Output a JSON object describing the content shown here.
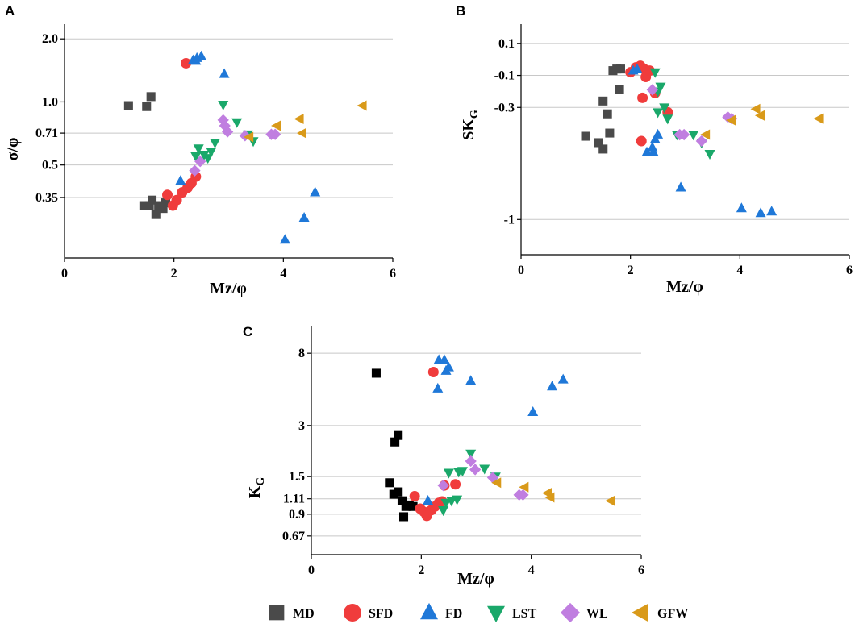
{
  "colors": {
    "MD": "#4a4a4a",
    "SFD": "#f03c3c",
    "FD": "#1f78d8",
    "LST": "#1aa86a",
    "WL": "#c07ee0",
    "GFW": "#d99a1a",
    "MD_panelC": "#000000",
    "grid": "#c8c8c8"
  },
  "legend": [
    {
      "key": "MD",
      "label": "MD",
      "marker": "square-icon"
    },
    {
      "key": "SFD",
      "label": "SFD",
      "marker": "circle-icon"
    },
    {
      "key": "FD",
      "label": "FD",
      "marker": "triangle-up-icon"
    },
    {
      "key": "LST",
      "label": "LST",
      "marker": "triangle-down-icon"
    },
    {
      "key": "WL",
      "label": "WL",
      "marker": "diamond-icon"
    },
    {
      "key": "GFW",
      "label": "GFW",
      "marker": "triangle-left-icon"
    }
  ],
  "chart_data": [
    {
      "panel": "A",
      "type": "scatter",
      "xlabel": "Mz/φ",
      "ylabel": "σ/φ",
      "xlim": [
        0,
        6
      ],
      "xticks": [
        0,
        2,
        4,
        6
      ],
      "ylim": [
        0.18,
        2.35
      ],
      "yscale": "log",
      "yticks": [
        0.35,
        0.5,
        0.71,
        1.0,
        2.0
      ],
      "ytick_labels": [
        "0.35",
        "0.5",
        "0.71",
        "1.0",
        "2.0"
      ],
      "grid": true,
      "series": [
        {
          "name": "MD",
          "marker": "square",
          "points": [
            [
              1.17,
              0.96
            ],
            [
              1.5,
              0.95
            ],
            [
              1.58,
              1.06
            ],
            [
              1.45,
              0.32
            ],
            [
              1.55,
              0.32
            ],
            [
              1.6,
              0.34
            ],
            [
              1.67,
              0.29
            ],
            [
              1.72,
              0.32
            ],
            [
              1.8,
              0.31
            ],
            [
              1.85,
              0.33
            ]
          ]
        },
        {
          "name": "SFD",
          "marker": "circle",
          "points": [
            [
              2.22,
              1.53
            ],
            [
              1.88,
              0.36
            ],
            [
              1.98,
              0.32
            ],
            [
              2.05,
              0.34
            ],
            [
              2.15,
              0.37
            ],
            [
              2.25,
              0.39
            ],
            [
              2.32,
              0.41
            ],
            [
              2.4,
              0.44
            ]
          ]
        },
        {
          "name": "FD",
          "marker": "triangle-up",
          "points": [
            [
              2.35,
              1.58
            ],
            [
              2.42,
              1.62
            ],
            [
              2.5,
              1.65
            ],
            [
              2.4,
              1.57
            ],
            [
              2.92,
              1.36
            ],
            [
              2.12,
              0.42
            ],
            [
              4.03,
              0.22
            ],
            [
              4.38,
              0.28
            ],
            [
              4.58,
              0.37
            ]
          ]
        },
        {
          "name": "LST",
          "marker": "triangle-down",
          "points": [
            [
              2.4,
              0.55
            ],
            [
              2.45,
              0.6
            ],
            [
              2.55,
              0.56
            ],
            [
              2.62,
              0.54
            ],
            [
              2.68,
              0.58
            ],
            [
              2.75,
              0.64
            ],
            [
              2.9,
              0.97
            ],
            [
              3.15,
              0.8
            ],
            [
              3.35,
              0.7
            ],
            [
              3.45,
              0.65
            ]
          ]
        },
        {
          "name": "WL",
          "marker": "diamond",
          "points": [
            [
              2.38,
              0.47
            ],
            [
              2.48,
              0.52
            ],
            [
              2.9,
              0.82
            ],
            [
              2.93,
              0.77
            ],
            [
              2.98,
              0.72
            ],
            [
              3.3,
              0.69
            ],
            [
              3.78,
              0.7
            ],
            [
              3.85,
              0.7
            ]
          ]
        },
        {
          "name": "GFW",
          "marker": "triangle-left",
          "points": [
            [
              3.38,
              0.68
            ],
            [
              3.88,
              0.77
            ],
            [
              4.3,
              0.83
            ],
            [
              4.35,
              0.71
            ],
            [
              5.45,
              0.96
            ]
          ]
        }
      ]
    },
    {
      "panel": "B",
      "type": "scatter",
      "xlabel": "Mz/φ",
      "ylabel": "SKG",
      "ylabel_main": "SK",
      "ylabel_sub": "G",
      "xlim": [
        0,
        6
      ],
      "xticks": [
        0,
        2,
        4,
        6
      ],
      "ylim": [
        -1.22,
        0.22
      ],
      "yticks": [
        0.1,
        -0.1,
        -0.3,
        -1
      ],
      "ytick_labels": [
        "0.1",
        "-0.1",
        "-0.3",
        "-1"
      ],
      "ytick_values_plotted": [
        0.1,
        -0.1,
        -0.3,
        -1.0
      ],
      "grid": true,
      "series": [
        {
          "name": "MD",
          "marker": "square",
          "points": [
            [
              1.68,
              -0.07
            ],
            [
              1.75,
              -0.06
            ],
            [
              1.82,
              -0.06
            ],
            [
              1.8,
              -0.19
            ],
            [
              1.5,
              -0.26
            ],
            [
              1.58,
              -0.34
            ],
            [
              1.62,
              -0.46
            ],
            [
              1.18,
              -0.48
            ],
            [
              1.42,
              -0.52
            ],
            [
              1.5,
              -0.56
            ]
          ]
        },
        {
          "name": "SFD",
          "marker": "circle",
          "points": [
            [
              2.0,
              -0.08
            ],
            [
              2.1,
              -0.05
            ],
            [
              2.18,
              -0.04
            ],
            [
              2.25,
              -0.06
            ],
            [
              2.3,
              -0.08
            ],
            [
              2.28,
              -0.11
            ],
            [
              2.35,
              -0.07
            ],
            [
              2.22,
              -0.24
            ],
            [
              2.45,
              -0.21
            ],
            [
              2.68,
              -0.33
            ],
            [
              2.2,
              -0.51
            ]
          ]
        },
        {
          "name": "FD",
          "marker": "triangle-up",
          "points": [
            [
              2.05,
              -0.07
            ],
            [
              2.12,
              -0.06
            ],
            [
              2.3,
              -0.58
            ],
            [
              2.4,
              -0.55
            ],
            [
              2.45,
              -0.5
            ],
            [
              2.5,
              -0.47
            ],
            [
              2.42,
              -0.58
            ],
            [
              2.92,
              -0.8
            ],
            [
              4.03,
              -0.93
            ],
            [
              4.38,
              -0.96
            ],
            [
              4.58,
              -0.95
            ]
          ]
        },
        {
          "name": "LST",
          "marker": "triangle-down",
          "points": [
            [
              2.45,
              -0.08
            ],
            [
              2.5,
              -0.2
            ],
            [
              2.55,
              -0.17
            ],
            [
              2.62,
              -0.3
            ],
            [
              2.68,
              -0.37
            ],
            [
              2.5,
              -0.33
            ],
            [
              2.85,
              -0.47
            ],
            [
              3.15,
              -0.47
            ],
            [
              3.3,
              -0.52
            ],
            [
              3.45,
              -0.59
            ]
          ]
        },
        {
          "name": "WL",
          "marker": "diamond",
          "points": [
            [
              2.4,
              -0.19
            ],
            [
              2.9,
              -0.47
            ],
            [
              2.98,
              -0.47
            ],
            [
              3.3,
              -0.51
            ],
            [
              3.78,
              -0.36
            ],
            [
              3.85,
              -0.37
            ]
          ]
        },
        {
          "name": "GFW",
          "marker": "triangle-left",
          "points": [
            [
              3.38,
              -0.47
            ],
            [
              3.85,
              -0.38
            ],
            [
              4.3,
              -0.31
            ],
            [
              4.38,
              -0.35
            ],
            [
              5.45,
              -0.37
            ]
          ]
        }
      ]
    },
    {
      "panel": "C",
      "type": "scatter",
      "xlabel": "Mz/φ",
      "ylabel": "KG",
      "ylabel_main": "K",
      "ylabel_sub": "G",
      "xlim": [
        0,
        6
      ],
      "xticks": [
        0,
        2,
        4,
        6
      ],
      "ylim": [
        0.52,
        11.5
      ],
      "yscale": "log",
      "yticks": [
        0.67,
        0.9,
        1.11,
        1.5,
        3,
        8
      ],
      "ytick_labels": [
        "0.67",
        "0.9",
        "1.11",
        "1.5",
        "3",
        "8"
      ],
      "grid": true,
      "series": [
        {
          "name": "MD",
          "marker": "square",
          "points": [
            [
              1.18,
              6.1
            ],
            [
              1.52,
              2.4
            ],
            [
              1.58,
              2.62
            ],
            [
              1.42,
              1.38
            ],
            [
              1.5,
              1.18
            ],
            [
              1.58,
              1.22
            ],
            [
              1.65,
              1.08
            ],
            [
              1.72,
              1.0
            ],
            [
              1.78,
              1.02
            ],
            [
              1.85,
              1.0
            ],
            [
              1.68,
              0.87
            ]
          ]
        },
        {
          "name": "SFD",
          "marker": "circle",
          "points": [
            [
              2.22,
              6.2
            ],
            [
              1.88,
              1.15
            ],
            [
              1.98,
              0.97
            ],
            [
              2.05,
              0.93
            ],
            [
              2.1,
              0.88
            ],
            [
              2.18,
              0.95
            ],
            [
              2.25,
              1.0
            ],
            [
              2.32,
              1.05
            ],
            [
              2.38,
              1.07
            ],
            [
              2.42,
              1.33
            ],
            [
              2.62,
              1.35
            ]
          ]
        },
        {
          "name": "FD",
          "marker": "triangle-up",
          "points": [
            [
              2.32,
              7.3
            ],
            [
              2.42,
              7.3
            ],
            [
              2.45,
              6.3
            ],
            [
              2.5,
              6.6
            ],
            [
              2.9,
              5.5
            ],
            [
              2.3,
              4.95
            ],
            [
              2.12,
              1.08
            ],
            [
              4.03,
              3.6
            ],
            [
              4.38,
              5.1
            ],
            [
              4.58,
              5.6
            ]
          ]
        },
        {
          "name": "LST",
          "marker": "triangle-down",
          "points": [
            [
              2.4,
              0.95
            ],
            [
              2.45,
              1.05
            ],
            [
              2.55,
              1.08
            ],
            [
              2.65,
              1.1
            ],
            [
              2.5,
              1.58
            ],
            [
              2.68,
              1.6
            ],
            [
              2.75,
              1.62
            ],
            [
              2.9,
              2.05
            ],
            [
              3.15,
              1.67
            ],
            [
              3.35,
              1.5
            ]
          ]
        },
        {
          "name": "WL",
          "marker": "diamond",
          "points": [
            [
              2.4,
              1.33
            ],
            [
              2.9,
              1.85
            ],
            [
              2.98,
              1.65
            ],
            [
              3.3,
              1.48
            ],
            [
              3.78,
              1.17
            ],
            [
              3.85,
              1.17
            ]
          ]
        },
        {
          "name": "GFW",
          "marker": "triangle-left",
          "points": [
            [
              3.38,
              1.38
            ],
            [
              3.88,
              1.3
            ],
            [
              4.3,
              1.2
            ],
            [
              4.35,
              1.13
            ],
            [
              5.45,
              1.08
            ]
          ]
        }
      ]
    }
  ]
}
